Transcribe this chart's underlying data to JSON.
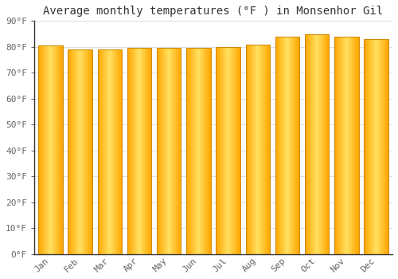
{
  "title": "Average monthly temperatures (°F ) in Monsenhor Gil",
  "months": [
    "Jan",
    "Feb",
    "Mar",
    "Apr",
    "May",
    "Jun",
    "Jul",
    "Aug",
    "Sep",
    "Oct",
    "Nov",
    "Dec"
  ],
  "values": [
    80.6,
    79.0,
    79.0,
    79.5,
    79.5,
    79.5,
    80.0,
    81.0,
    84.0,
    85.0,
    84.0,
    83.0
  ],
  "ylim": [
    0,
    90
  ],
  "yticks": [
    0,
    10,
    20,
    30,
    40,
    50,
    60,
    70,
    80,
    90
  ],
  "ytick_labels": [
    "0°F",
    "10°F",
    "20°F",
    "30°F",
    "40°F",
    "50°F",
    "60°F",
    "70°F",
    "80°F",
    "90°F"
  ],
  "bar_edge_color": "#CC8800",
  "bar_center_color": "#FFE060",
  "bar_side_color": "#FFA500",
  "background_color": "#FFFFFF",
  "grid_color": "#DDDDDD",
  "title_fontsize": 10,
  "tick_fontsize": 8,
  "bar_width": 0.82
}
